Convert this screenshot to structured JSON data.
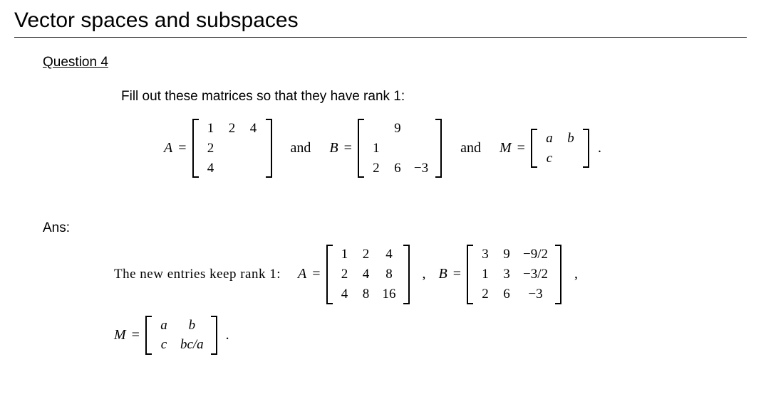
{
  "title": "Vector spaces and subspaces",
  "question_label": "Question 4",
  "prompt": "Fill out these matrices so that they have rank 1:",
  "and": "and",
  "eq": "=",
  "comma": ",",
  "period": ".",
  "A_label": "A",
  "B_label": "B",
  "M_label": "M",
  "A_q": [
    [
      "1",
      "2",
      "4"
    ],
    [
      "2",
      "",
      ""
    ],
    [
      "4",
      "",
      ""
    ]
  ],
  "B_q": [
    [
      "",
      "9",
      ""
    ],
    [
      "1",
      "",
      ""
    ],
    [
      "2",
      "6",
      "−3"
    ]
  ],
  "M_q": [
    [
      "a",
      "b"
    ],
    [
      "c",
      ""
    ]
  ],
  "ans_label": "Ans:",
  "ans_text": "The new entries keep rank 1:",
  "A_ans": [
    [
      "1",
      "2",
      "4"
    ],
    [
      "2",
      "4",
      "8"
    ],
    [
      "4",
      "8",
      "16"
    ]
  ],
  "B_ans": [
    [
      "3",
      "9",
      "−9/2"
    ],
    [
      "1",
      "3",
      "−3/2"
    ],
    [
      "2",
      "6",
      "−3"
    ]
  ],
  "M_ans": [
    [
      "a",
      "b"
    ],
    [
      "c",
      "bc/a"
    ]
  ]
}
